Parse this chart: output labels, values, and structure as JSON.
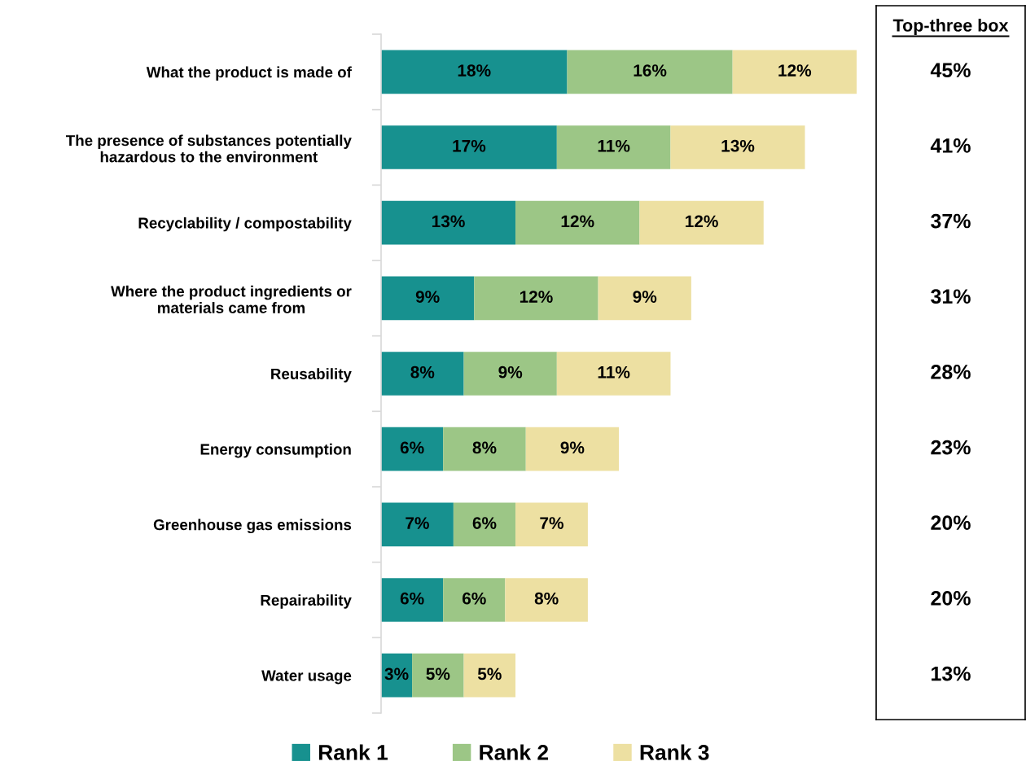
{
  "chart_data": [
    {
      "type": "bar",
      "orientation": "horizontal",
      "stacked": true,
      "categories": [
        "What the product is made of",
        "The presence of substances potentially\nhazardous to the environment",
        "Recyclability / compostability",
        "Where the product ingredients or\nmaterials came from",
        "Reusability",
        "Energy consumption",
        "Greenhouse gas emissions",
        "Repairability",
        "Water usage"
      ],
      "series": [
        {
          "name": "Rank 1",
          "color": "#17918f",
          "values": [
            18,
            17,
            13,
            9,
            8,
            6,
            7,
            6,
            3
          ],
          "value_labels": [
            "18%",
            "17%",
            "13%",
            "9%",
            "8%",
            "6%",
            "7%",
            "6%",
            "3%"
          ]
        },
        {
          "name": "Rank 2",
          "color": "#9cc686",
          "values": [
            16,
            11,
            12,
            12,
            9,
            8,
            6,
            6,
            5
          ],
          "value_labels": [
            "16%",
            "11%",
            "12%",
            "12%",
            "9%",
            "8%",
            "6%",
            "6%",
            "5%"
          ]
        },
        {
          "name": "Rank 3",
          "color": "#ede0a2",
          "values": [
            12,
            13,
            12,
            9,
            11,
            9,
            7,
            8,
            5
          ],
          "value_labels": [
            "12%",
            "13%",
            "12%",
            "9%",
            "11%",
            "9%",
            "7%",
            "8%",
            "5%"
          ]
        }
      ],
      "legend": "bottom",
      "tick_labels": "y"
    },
    {
      "type": "other",
      "title": "Top-three box",
      "annotations": [
        "45%",
        "41%",
        "37%",
        "31%",
        "28%",
        "23%",
        "20%",
        "20%",
        "13%"
      ]
    }
  ]
}
